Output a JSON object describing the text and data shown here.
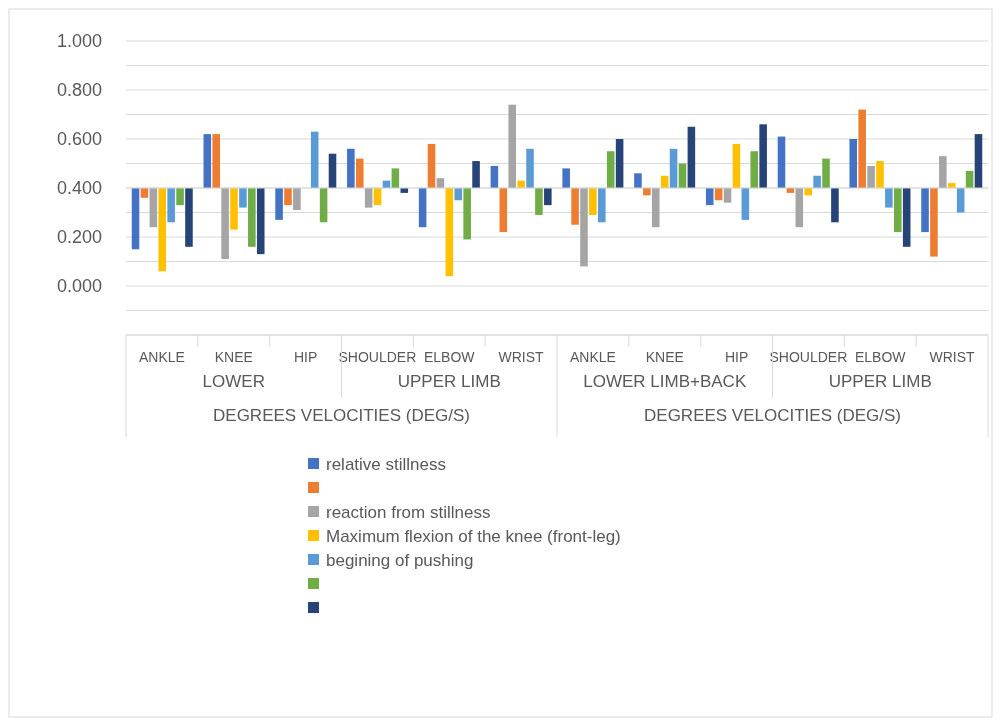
{
  "chart_data": {
    "type": "bar",
    "categories": [
      "ANKLE",
      "KNEE",
      "HIP",
      "SHOULDER",
      "ELBOW",
      "WRIST",
      "ANKLE",
      "KNEE",
      "HIP",
      "SHOULDER",
      "ELBOW",
      "WRIST"
    ],
    "series": [
      {
        "name": "relative stillness",
        "color": "#4472c4",
        "base": [
          0.4,
          0.4,
          0.4,
          0.4,
          0.4,
          0.4,
          0.4,
          0.4,
          0.4,
          0.4,
          0.4,
          0.4
        ],
        "values": [
          -0.25,
          0.22,
          -0.13,
          0.16,
          -0.16,
          0.09,
          0.08,
          0.06,
          -0.07,
          0.21,
          0.2,
          -0.18
        ]
      },
      {
        "color": "#ed7d31",
        "base": [
          0.4,
          0.4,
          0.4,
          0.4,
          0.4,
          0.4,
          0.4,
          0.4,
          0.4,
          0.4,
          0.4,
          0.4
        ],
        "values": [
          -0.04,
          0.22,
          -0.07,
          0.12,
          0.18,
          -0.18,
          -0.15,
          -0.03,
          -0.05,
          -0.02,
          0.32,
          -0.28
        ]
      },
      {
        "name": "reaction from stillness",
        "color": "#a5a5a5",
        "base": [
          0.4,
          0.4,
          0.4,
          0.4,
          0.4,
          0.4,
          0.4,
          0.4,
          0.4,
          0.4,
          0.4,
          0.4
        ],
        "values": [
          -0.16,
          -0.29,
          -0.09,
          -0.08,
          0.04,
          0.34,
          -0.32,
          -0.16,
          -0.06,
          -0.16,
          0.09,
          0.13
        ]
      },
      {
        "name": "Maximum flexion of the knee (front-leg)",
        "color": "#ffc000",
        "base": [
          0.4,
          0.4,
          null,
          0.4,
          0.4,
          0.4,
          0.4,
          0.4,
          0.4,
          0.4,
          0.4,
          0.4
        ],
        "values": [
          -0.34,
          -0.17,
          null,
          -0.07,
          -0.36,
          0.03,
          -0.11,
          0.05,
          0.18,
          -0.03,
          0.11,
          0.02
        ]
      },
      {
        "name": "begining of pushing",
        "color": "#5b9bd5",
        "base": [
          0.4,
          0.4,
          0.4,
          0.4,
          0.4,
          0.4,
          0.4,
          0.4,
          0.4,
          0.4,
          0.4,
          0.4
        ],
        "values": [
          -0.14,
          -0.08,
          0.23,
          0.03,
          -0.05,
          0.16,
          -0.14,
          0.16,
          -0.13,
          0.05,
          -0.08,
          -0.1
        ]
      },
      {
        "color": "#70ad47",
        "base": [
          0.4,
          0.4,
          0.4,
          0.4,
          0.4,
          0.4,
          0.4,
          0.4,
          0.4,
          0.4,
          0.4,
          0.4
        ],
        "values": [
          -0.07,
          -0.24,
          -0.14,
          0.08,
          -0.21,
          -0.11,
          0.15,
          0.1,
          0.15,
          0.12,
          -0.18,
          0.07
        ]
      },
      {
        "color": "#264478",
        "base": [
          0.4,
          0.4,
          0.4,
          0.4,
          0.4,
          0.4,
          0.4,
          0.4,
          0.4,
          0.4,
          0.4,
          0.4
        ],
        "values": [
          -0.24,
          -0.27,
          0.14,
          -0.02,
          0.11,
          -0.07,
          0.2,
          0.25,
          0.26,
          -0.14,
          -0.24,
          0.22
        ]
      }
    ],
    "ylim": [
      -0.2,
      1.0
    ],
    "yticks": [
      {
        "value": -0.2,
        "label": null
      },
      {
        "value": -0.1,
        "label": null
      },
      {
        "value": 0,
        "label": "0.000"
      },
      {
        "value": 0.1,
        "label": null
      },
      {
        "value": 0.2,
        "label": "0.200"
      },
      {
        "value": 0.3,
        "label": null
      },
      {
        "value": 0.4,
        "label": "0.400"
      },
      {
        "value": 0.5,
        "label": null
      },
      {
        "value": 0.6,
        "label": "0.600"
      },
      {
        "value": 0.7,
        "label": null
      },
      {
        "value": 0.8,
        "label": "0.800"
      },
      {
        "value": 0.9,
        "label": null
      },
      {
        "value": 1.0,
        "label": "1.000"
      }
    ],
    "grid": "y",
    "legend": "bottom",
    "annotations": [
      "LOWER",
      "UPPER LIMB",
      "LOWER LIMB+BACK",
      "UPPER LIMB",
      "DEGREES VELOCITIES (DEG/S)",
      "DEGREES VELOCITIES (DEG/S)"
    ]
  }
}
